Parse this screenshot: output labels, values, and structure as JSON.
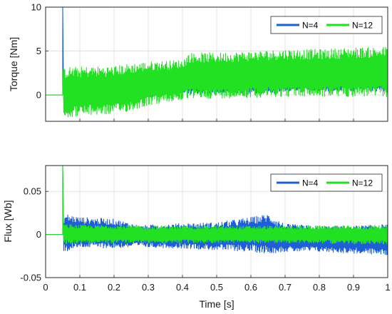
{
  "chart_data": [
    {
      "type": "line",
      "ylabel": "Torque [Nm]",
      "xlabel": "",
      "xlim": [
        0,
        1
      ],
      "ylim": [
        -3,
        10
      ],
      "yticks": [
        "10",
        "5",
        "0"
      ],
      "grid": true,
      "legend_placement": "top-right",
      "series": [
        {
          "name": "N=4",
          "color": "#1f5fd6",
          "x": [
            0,
            0.05,
            0.052,
            0.06,
            0.1,
            0.2,
            0.25,
            0.3,
            0.4,
            0.5,
            0.6,
            0.67,
            0.7,
            0.8,
            0.9,
            1.0
          ],
          "upper": [
            0,
            10,
            1.8,
            2.0,
            2.0,
            2.0,
            2.1,
            2.3,
            2.4,
            2.5,
            2.5,
            2.5,
            3.0,
            3.0,
            3.0,
            3.0
          ],
          "lower": [
            0,
            0,
            -1.2,
            -1.4,
            -1.3,
            -1.1,
            -0.9,
            -0.3,
            0.1,
            0.1,
            0.1,
            0.2,
            0.4,
            0.4,
            0.4,
            0.4
          ]
        },
        {
          "name": "N=12",
          "color": "#22e022",
          "x": [
            0,
            0.05,
            0.052,
            0.06,
            0.1,
            0.2,
            0.25,
            0.3,
            0.4,
            0.42,
            0.5,
            0.6,
            0.7,
            0.8,
            0.9,
            1.0
          ],
          "upper": [
            0,
            0,
            3.0,
            3.2,
            3.2,
            3.3,
            3.6,
            3.8,
            4.0,
            4.8,
            4.8,
            5.0,
            5.2,
            5.2,
            5.4,
            5.5
          ],
          "lower": [
            0,
            0,
            -2.5,
            -2.6,
            -2.4,
            -2.2,
            -1.8,
            -1.2,
            -0.6,
            -0.4,
            -0.4,
            -0.3,
            -0.2,
            -0.2,
            -0.2,
            -0.2
          ]
        }
      ]
    },
    {
      "type": "line",
      "ylabel": "Flux [Wb]",
      "xlabel": "Time [s]",
      "xlim": [
        0,
        1
      ],
      "ylim": [
        -0.05,
        0.08
      ],
      "yticks": [
        "0.05",
        "0",
        "-0.05"
      ],
      "xticks": [
        "0",
        "0.1",
        "0.2",
        "0.3",
        "0.4",
        "0.5",
        "0.6",
        "0.7",
        "0.8",
        "0.9",
        "1"
      ],
      "grid": true,
      "legend_placement": "top-right",
      "series": [
        {
          "name": "N=4",
          "color": "#1f5fd6",
          "x": [
            0,
            0.05,
            0.052,
            0.06,
            0.1,
            0.2,
            0.28,
            0.3,
            0.4,
            0.5,
            0.6,
            0.65,
            0.7,
            0.8,
            0.9,
            1.0
          ],
          "upper": [
            0,
            0.08,
            0.022,
            0.024,
            0.02,
            0.018,
            0.01,
            0.011,
            0.013,
            0.014,
            0.02,
            0.024,
            0.012,
            0.01,
            0.01,
            0.012
          ],
          "lower": [
            0,
            0,
            -0.02,
            -0.02,
            -0.015,
            -0.016,
            -0.014,
            -0.015,
            -0.016,
            -0.018,
            -0.02,
            -0.022,
            -0.02,
            -0.02,
            -0.022,
            -0.024
          ]
        },
        {
          "name": "N=12",
          "color": "#22e022",
          "x": [
            0,
            0.05,
            0.052,
            0.06,
            0.1,
            0.2,
            0.3,
            0.4,
            0.5,
            0.6,
            0.7,
            0.8,
            0.9,
            1.0
          ],
          "upper": [
            0,
            0.08,
            0.012,
            0.012,
            0.011,
            0.011,
            0.01,
            0.01,
            0.01,
            0.01,
            0.01,
            0.01,
            0.01,
            0.011
          ],
          "lower": [
            0,
            0,
            -0.011,
            -0.011,
            -0.01,
            -0.01,
            -0.01,
            -0.01,
            -0.01,
            -0.01,
            -0.01,
            -0.01,
            -0.011,
            -0.011
          ]
        }
      ]
    }
  ]
}
